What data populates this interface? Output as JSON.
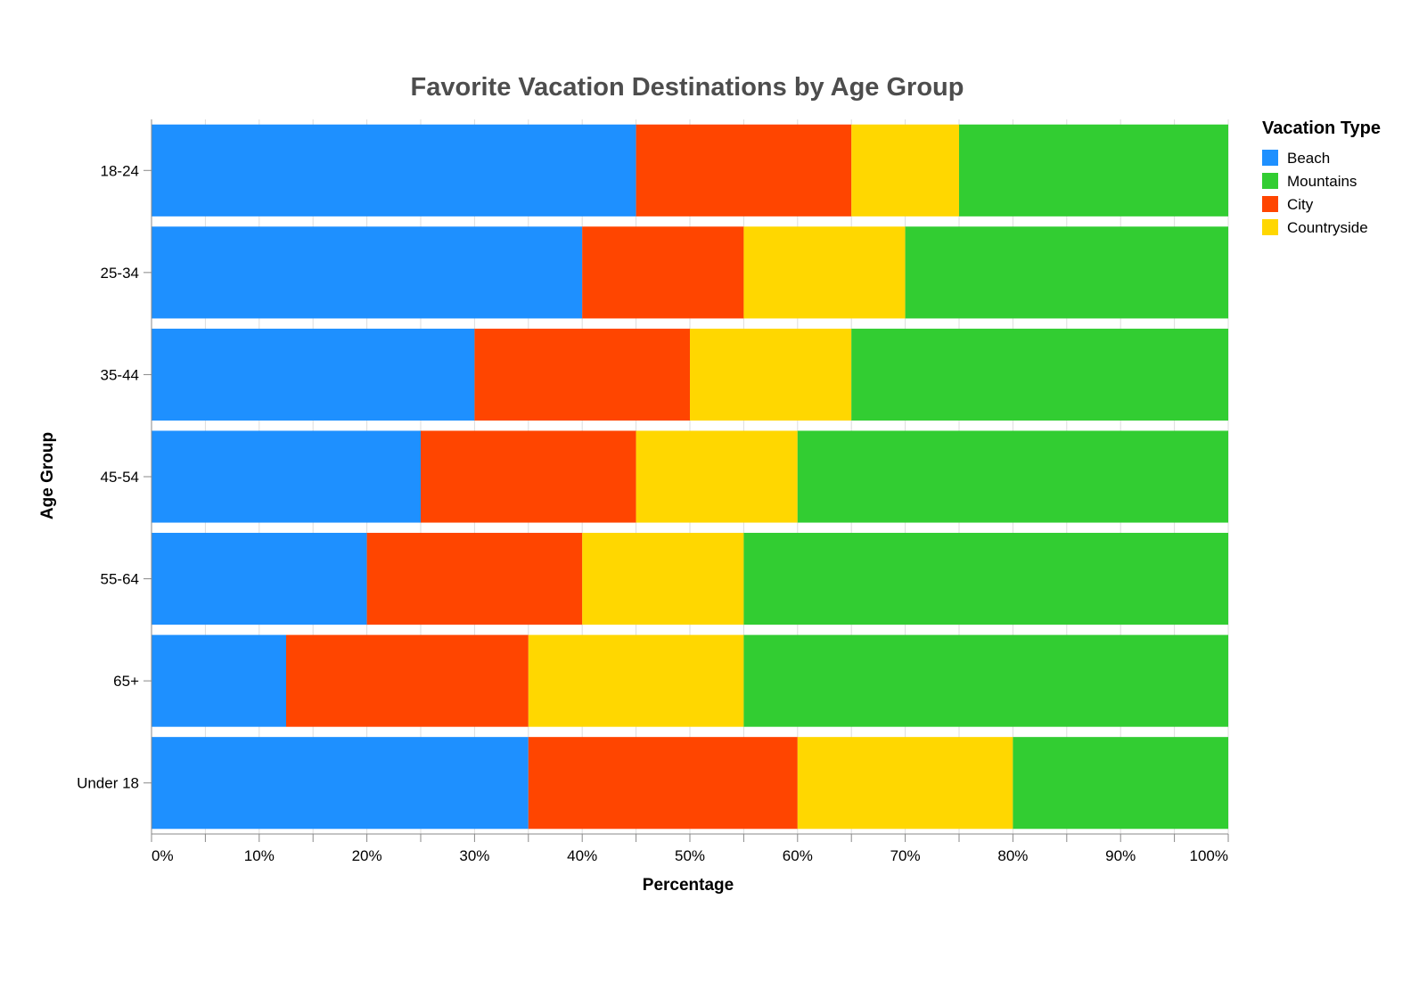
{
  "chart_data": {
    "type": "bar",
    "orientation": "horizontal",
    "stacked": true,
    "title": "Favorite Vacation Destinations by Age Group",
    "xlabel": "Percentage",
    "ylabel": "Age Group",
    "xlim": [
      0,
      100
    ],
    "x_tick_format": "percent",
    "grid": true,
    "legend_title": "Vacation Type",
    "legend_position": "top-right",
    "categories": [
      "18-24",
      "25-34",
      "35-44",
      "45-54",
      "55-64",
      "65+",
      "Under 18"
    ],
    "legend_order": [
      "Beach",
      "Mountains",
      "City",
      "Countryside"
    ],
    "stack_order": [
      "Beach",
      "City",
      "Countryside",
      "Mountains"
    ],
    "series": [
      {
        "name": "Beach",
        "color": "#1e90ff",
        "values": [
          45,
          40,
          30,
          25,
          20,
          12.5,
          35
        ]
      },
      {
        "name": "City",
        "color": "#ff4500",
        "values": [
          20,
          15,
          20,
          20,
          20,
          22.5,
          25
        ]
      },
      {
        "name": "Countryside",
        "color": "#ffd700",
        "values": [
          10,
          15,
          15,
          15,
          15,
          20,
          20
        ]
      },
      {
        "name": "Mountains",
        "color": "#32cd32",
        "values": [
          25,
          30,
          35,
          40,
          45,
          45,
          20
        ]
      }
    ]
  }
}
